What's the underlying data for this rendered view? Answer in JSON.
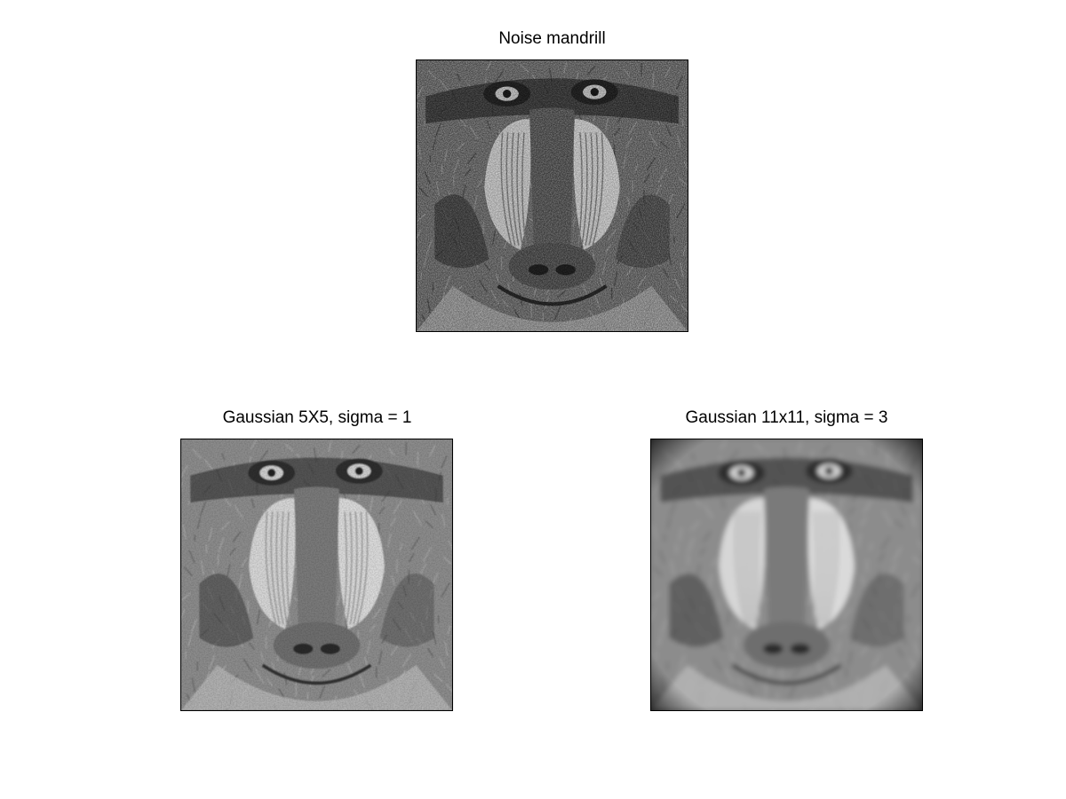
{
  "figure": {
    "panels": [
      {
        "title": "Noise mandrill",
        "blur": "none",
        "noise": "heavy"
      },
      {
        "title": "Gaussian 5X5, sigma = 1",
        "blur": "light",
        "noise": "light"
      },
      {
        "title": "Gaussian 11x11, sigma = 3",
        "blur": "strong",
        "noise": "none"
      }
    ]
  }
}
